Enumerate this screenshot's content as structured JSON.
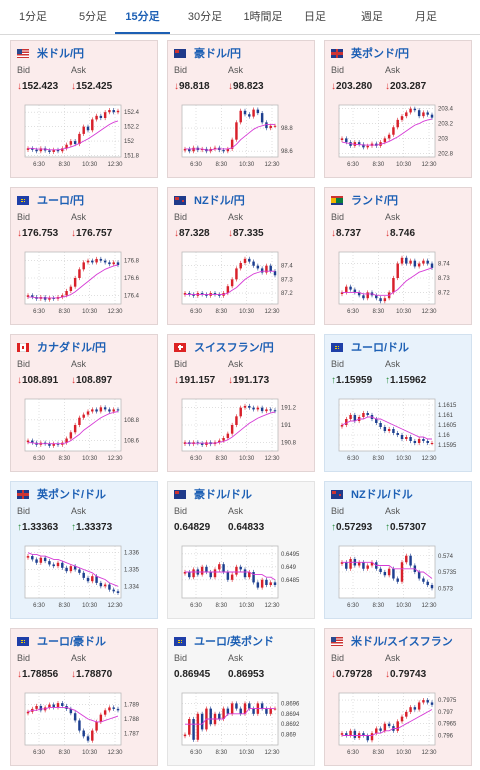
{
  "tabs": [
    {
      "label": "1分足",
      "active": false
    },
    {
      "label": "5分足",
      "active": false
    },
    {
      "label": "15分足",
      "active": true
    },
    {
      "label": "30分足",
      "active": false
    },
    {
      "label": "1時間足",
      "active": false
    },
    {
      "label": "日足",
      "active": false
    },
    {
      "label": "週足",
      "active": false
    },
    {
      "label": "月足",
      "active": false
    }
  ],
  "labels": {
    "bid": "Bid",
    "ask": "Ask"
  },
  "cards": [
    {
      "pair": "米ドル/円",
      "trend": "down",
      "flag": "us",
      "bid": "152.423",
      "ask": "152.425",
      "bid_dir": "down",
      "ask_dir": "down",
      "x_ticks": [
        "6:30",
        "8:30",
        "10:30",
        "12:30"
      ],
      "y_ticks": [
        "152.4",
        "152.2",
        "152",
        "151.8"
      ],
      "ylim": [
        151.78,
        152.5
      ],
      "candles": [
        151.9,
        151.88,
        151.86,
        151.9,
        151.87,
        151.85,
        151.88,
        151.86,
        151.9,
        151.95,
        152.0,
        151.96,
        152.1,
        152.2,
        152.15,
        152.3,
        152.35,
        152.32,
        152.4,
        152.43,
        152.4,
        152.42
      ],
      "ma": [
        151.9,
        151.9,
        151.89,
        151.89,
        151.89,
        151.88,
        151.88,
        151.88,
        151.89,
        151.9,
        151.92,
        151.94,
        151.97,
        152.0,
        152.03,
        152.07,
        152.11,
        152.15,
        152.19,
        152.23,
        152.26,
        152.28
      ]
    },
    {
      "pair": "豪ドル/円",
      "trend": "down",
      "flag": "au",
      "bid": "98.818",
      "ask": "98.823",
      "bid_dir": "down",
      "ask_dir": "down",
      "x_ticks": [
        "6:30",
        "8:30",
        "10:30",
        "12:30"
      ],
      "y_ticks": [
        "98.8",
        "98.6"
      ],
      "ylim": [
        98.55,
        99.0
      ],
      "candles": [
        98.62,
        98.6,
        98.63,
        98.61,
        98.62,
        98.6,
        98.62,
        98.63,
        98.61,
        98.6,
        98.62,
        98.7,
        98.85,
        98.95,
        98.92,
        98.9,
        98.96,
        98.93,
        98.85,
        98.8,
        98.82,
        98.82
      ],
      "ma": [
        98.62,
        98.62,
        98.62,
        98.62,
        98.62,
        98.61,
        98.61,
        98.62,
        98.62,
        98.62,
        98.62,
        98.63,
        98.66,
        98.7,
        98.73,
        98.76,
        98.79,
        98.81,
        98.82,
        98.83,
        98.83,
        98.83
      ]
    },
    {
      "pair": "英ポンド/円",
      "trend": "down",
      "flag": "gb",
      "bid": "203.280",
      "ask": "203.287",
      "bid_dir": "down",
      "ask_dir": "down",
      "x_ticks": [
        "6:30",
        "8:30",
        "10:30",
        "12:30"
      ],
      "y_ticks": [
        "203.4",
        "203.2",
        "203",
        "202.8"
      ],
      "ylim": [
        202.75,
        203.45
      ],
      "candles": [
        203.0,
        202.95,
        202.9,
        202.95,
        202.92,
        202.88,
        202.9,
        202.93,
        202.9,
        202.95,
        203.0,
        203.05,
        203.15,
        203.25,
        203.3,
        203.35,
        203.4,
        203.38,
        203.3,
        203.35,
        203.32,
        203.28
      ],
      "ma": [
        202.95,
        202.94,
        202.93,
        202.92,
        202.92,
        202.91,
        202.91,
        202.91,
        202.91,
        202.92,
        202.94,
        202.96,
        202.99,
        203.02,
        203.06,
        203.1,
        203.14,
        203.18,
        203.2,
        203.23,
        203.25,
        203.26
      ]
    },
    {
      "pair": "ユーロ/円",
      "trend": "down",
      "flag": "eu",
      "bid": "176.753",
      "ask": "176.757",
      "bid_dir": "down",
      "ask_dir": "down",
      "x_ticks": [
        "6:30",
        "8:30",
        "10:30",
        "12:30"
      ],
      "y_ticks": [
        "176.8",
        "176.6",
        "176.4"
      ],
      "ylim": [
        176.3,
        176.9
      ],
      "candles": [
        176.4,
        176.38,
        176.36,
        176.38,
        176.35,
        176.37,
        176.36,
        176.38,
        176.4,
        176.45,
        176.5,
        176.6,
        176.7,
        176.78,
        176.8,
        176.78,
        176.82,
        176.8,
        176.78,
        176.76,
        176.78,
        176.75
      ],
      "ma": [
        176.38,
        176.38,
        176.37,
        176.37,
        176.37,
        176.37,
        176.37,
        176.37,
        176.38,
        176.39,
        176.41,
        176.44,
        176.48,
        176.52,
        176.56,
        176.6,
        176.64,
        176.67,
        176.7,
        176.72,
        176.74,
        176.75
      ]
    },
    {
      "pair": "NZドル/円",
      "trend": "down",
      "flag": "nz",
      "bid": "87.328",
      "ask": "87.335",
      "bid_dir": "down",
      "ask_dir": "down",
      "x_ticks": [
        "6:30",
        "8:30",
        "10:30",
        "12:30"
      ],
      "y_ticks": [
        "87.4",
        "87.3",
        "87.2"
      ],
      "ylim": [
        87.12,
        87.5
      ],
      "candles": [
        87.2,
        87.19,
        87.18,
        87.2,
        87.19,
        87.18,
        87.2,
        87.19,
        87.18,
        87.2,
        87.25,
        87.3,
        87.38,
        87.42,
        87.45,
        87.43,
        87.4,
        87.38,
        87.35,
        87.4,
        87.36,
        87.33
      ],
      "ma": [
        87.19,
        87.19,
        87.19,
        87.19,
        87.19,
        87.19,
        87.19,
        87.19,
        87.19,
        87.19,
        87.2,
        87.22,
        87.24,
        87.27,
        87.3,
        87.32,
        87.34,
        87.35,
        87.36,
        87.36,
        87.36,
        87.36
      ]
    },
    {
      "pair": "ランド/円",
      "trend": "down",
      "flag": "za",
      "bid": "8.737",
      "ask": "8.746",
      "bid_dir": "down",
      "ask_dir": "down",
      "x_ticks": [
        "6:30",
        "8:30",
        "10:30",
        "12:30"
      ],
      "y_ticks": [
        "8.74",
        "8.73",
        "8.72"
      ],
      "ylim": [
        8.712,
        8.748
      ],
      "candles": [
        8.72,
        8.724,
        8.722,
        8.72,
        8.718,
        8.716,
        8.72,
        8.718,
        8.716,
        8.714,
        8.716,
        8.72,
        8.73,
        8.74,
        8.744,
        8.74,
        8.742,
        8.738,
        8.74,
        8.742,
        8.74,
        8.737
      ],
      "ma": [
        8.72,
        8.72,
        8.72,
        8.72,
        8.72,
        8.719,
        8.719,
        8.719,
        8.718,
        8.718,
        8.718,
        8.718,
        8.72,
        8.722,
        8.725,
        8.728,
        8.73,
        8.732,
        8.734,
        8.735,
        8.736,
        8.737
      ]
    },
    {
      "pair": "カナダドル/円",
      "trend": "down",
      "flag": "ca",
      "bid": "108.891",
      "ask": "108.897",
      "bid_dir": "down",
      "ask_dir": "down",
      "x_ticks": [
        "6:30",
        "8:30",
        "10:30",
        "12:30"
      ],
      "y_ticks": [
        "108.8",
        "108.6"
      ],
      "ylim": [
        108.5,
        109.0
      ],
      "candles": [
        108.6,
        108.58,
        108.56,
        108.58,
        108.57,
        108.55,
        108.57,
        108.56,
        108.58,
        108.62,
        108.68,
        108.75,
        108.82,
        108.85,
        108.88,
        108.9,
        108.88,
        108.92,
        108.9,
        108.88,
        108.9,
        108.89
      ],
      "ma": [
        108.58,
        108.58,
        108.57,
        108.57,
        108.57,
        108.57,
        108.57,
        108.57,
        108.57,
        108.58,
        108.6,
        108.63,
        108.66,
        108.7,
        108.73,
        108.76,
        108.79,
        108.82,
        108.84,
        108.86,
        108.87,
        108.88
      ]
    },
    {
      "pair": "スイスフラン/円",
      "trend": "down",
      "flag": "ch",
      "bid": "191.157",
      "ask": "191.173",
      "bid_dir": "down",
      "ask_dir": "down",
      "x_ticks": [
        "6:30",
        "8:30",
        "10:30",
        "12:30"
      ],
      "y_ticks": [
        "191.2",
        "191",
        "190.8"
      ],
      "ylim": [
        190.7,
        191.3
      ],
      "candles": [
        190.8,
        190.78,
        190.8,
        190.79,
        190.77,
        190.8,
        190.78,
        190.8,
        190.82,
        190.85,
        190.9,
        191.0,
        191.1,
        191.2,
        191.22,
        191.2,
        191.18,
        191.2,
        191.16,
        191.18,
        191.17,
        191.16
      ],
      "ma": [
        190.79,
        190.79,
        190.79,
        190.79,
        190.79,
        190.79,
        190.79,
        190.79,
        190.8,
        190.81,
        190.83,
        190.86,
        190.9,
        190.94,
        190.98,
        191.02,
        191.05,
        191.08,
        191.1,
        191.12,
        191.14,
        191.15
      ]
    },
    {
      "pair": "ユーロ/ドル",
      "trend": "up",
      "flag": "eu",
      "bid": "1.15959",
      "ask": "1.15962",
      "bid_dir": "up",
      "ask_dir": "up",
      "x_ticks": [
        "6:30",
        "8:30",
        "10:30",
        "12:30"
      ],
      "y_ticks": [
        "1.1615",
        "1.161",
        "1.1605",
        "1.16",
        "1.1595"
      ],
      "ylim": [
        1.1592,
        1.1618
      ],
      "candles": [
        1.1605,
        1.1608,
        1.161,
        1.1607,
        1.1609,
        1.1611,
        1.161,
        1.1608,
        1.1606,
        1.1604,
        1.1602,
        1.1603,
        1.1601,
        1.16,
        1.1598,
        1.1599,
        1.1597,
        1.1596,
        1.1598,
        1.1597,
        1.1596,
        1.1596
      ],
      "ma": [
        1.1605,
        1.1606,
        1.1607,
        1.1607,
        1.1608,
        1.1608,
        1.1609,
        1.1609,
        1.1608,
        1.1608,
        1.1607,
        1.1606,
        1.1605,
        1.1604,
        1.1603,
        1.1602,
        1.1601,
        1.16,
        1.1599,
        1.1599,
        1.1598,
        1.1598
      ]
    },
    {
      "pair": "英ポンド/ドル",
      "trend": "up",
      "flag": "gb",
      "bid": "1.33363",
      "ask": "1.33373",
      "bid_dir": "up",
      "ask_dir": "up",
      "x_ticks": [
        "6:30",
        "8:30",
        "10:30",
        "12:30"
      ],
      "y_ticks": [
        "1.336",
        "1.335",
        "1.334"
      ],
      "ylim": [
        1.3333,
        1.3364
      ],
      "candles": [
        1.3358,
        1.3356,
        1.3354,
        1.3357,
        1.3355,
        1.3353,
        1.3352,
        1.3354,
        1.3351,
        1.3349,
        1.3352,
        1.335,
        1.3348,
        1.3345,
        1.3343,
        1.3346,
        1.3342,
        1.334,
        1.3341,
        1.3338,
        1.3337,
        1.3336
      ],
      "ma": [
        1.336,
        1.3359,
        1.3359,
        1.3358,
        1.3358,
        1.3357,
        1.3356,
        1.3356,
        1.3355,
        1.3354,
        1.3353,
        1.3352,
        1.3351,
        1.335,
        1.3349,
        1.3348,
        1.3346,
        1.3345,
        1.3344,
        1.3342,
        1.3341,
        1.334
      ]
    },
    {
      "pair": "豪ドル/ドル",
      "trend": "flat",
      "flag": "au",
      "bid": "0.64829",
      "ask": "0.64833",
      "bid_dir": "none",
      "ask_dir": "none",
      "x_ticks": [
        "6:30",
        "8:30",
        "10:30",
        "12:30"
      ],
      "y_ticks": [
        "0.6495",
        "0.649",
        "0.6485"
      ],
      "ylim": [
        0.6478,
        0.6498
      ],
      "candles": [
        0.6488,
        0.6486,
        0.6489,
        0.6487,
        0.649,
        0.6488,
        0.6486,
        0.6489,
        0.6491,
        0.6488,
        0.6485,
        0.6487,
        0.649,
        0.6489,
        0.6486,
        0.6488,
        0.6484,
        0.6482,
        0.6485,
        0.6483,
        0.6484,
        0.6483
      ],
      "ma": [
        0.6488,
        0.6488,
        0.6488,
        0.6488,
        0.6488,
        0.6488,
        0.6488,
        0.6488,
        0.6488,
        0.6488,
        0.6488,
        0.6488,
        0.6488,
        0.6488,
        0.6488,
        0.6488,
        0.6487,
        0.6487,
        0.6487,
        0.6486,
        0.6486,
        0.6485
      ]
    },
    {
      "pair": "NZドル/ドル",
      "trend": "up",
      "flag": "nz",
      "bid": "0.57293",
      "ask": "0.57307",
      "bid_dir": "up",
      "ask_dir": "up",
      "x_ticks": [
        "6:30",
        "8:30",
        "10:30",
        "12:30"
      ],
      "y_ticks": [
        "0.574",
        "0.5735",
        "0.573"
      ],
      "ylim": [
        0.5727,
        0.5743
      ],
      "candles": [
        0.5738,
        0.5736,
        0.5739,
        0.5737,
        0.5738,
        0.5736,
        0.5737,
        0.5738,
        0.5736,
        0.5735,
        0.5734,
        0.5736,
        0.5733,
        0.5732,
        0.5738,
        0.574,
        0.5737,
        0.5735,
        0.5733,
        0.5732,
        0.5731,
        0.573
      ],
      "ma": [
        0.5738,
        0.5738,
        0.5738,
        0.5738,
        0.5738,
        0.5738,
        0.5738,
        0.5738,
        0.5737,
        0.5737,
        0.5737,
        0.5737,
        0.5736,
        0.5736,
        0.5736,
        0.5736,
        0.5736,
        0.5736,
        0.5735,
        0.5735,
        0.5734,
        0.5733
      ]
    },
    {
      "pair": "ユーロ/豪ドル",
      "trend": "down",
      "flag": "eu",
      "bid": "1.78856",
      "ask": "1.78870",
      "bid_dir": "down",
      "ask_dir": "down",
      "x_ticks": [
        "6:30",
        "8:30",
        "10:30",
        "12:30"
      ],
      "y_ticks": [
        "1.789",
        "1.788",
        "1.787"
      ],
      "ylim": [
        1.7862,
        1.7898
      ],
      "candles": [
        1.7885,
        1.7887,
        1.7889,
        1.7886,
        1.7888,
        1.789,
        1.7888,
        1.7891,
        1.7889,
        1.7887,
        1.7884,
        1.7879,
        1.7872,
        1.7868,
        1.7865,
        1.7872,
        1.7878,
        1.7883,
        1.7886,
        1.7888,
        1.7887,
        1.7886
      ],
      "ma": [
        1.7885,
        1.7886,
        1.7886,
        1.7887,
        1.7887,
        1.7888,
        1.7888,
        1.7888,
        1.7888,
        1.7888,
        1.7887,
        1.7886,
        1.7884,
        1.7882,
        1.788,
        1.7879,
        1.7878,
        1.7878,
        1.7879,
        1.788,
        1.7881,
        1.7882
      ]
    },
    {
      "pair": "ユーロ/英ポンド",
      "trend": "flat",
      "flag": "eu",
      "bid": "0.86945",
      "ask": "0.86953",
      "bid_dir": "none",
      "ask_dir": "none",
      "x_ticks": [
        "6:30",
        "8:30",
        "10:30",
        "12:30"
      ],
      "y_ticks": [
        "0.8696",
        "0.8694",
        "0.8692",
        "0.869"
      ],
      "ylim": [
        0.8688,
        0.8698
      ],
      "candles": [
        0.869,
        0.8693,
        0.8689,
        0.8694,
        0.8691,
        0.8695,
        0.8692,
        0.8694,
        0.8693,
        0.8695,
        0.8694,
        0.8696,
        0.8695,
        0.8694,
        0.8696,
        0.8695,
        0.8694,
        0.8696,
        0.8695,
        0.8694,
        0.8695,
        0.8695
      ],
      "ma": [
        0.8692,
        0.8692,
        0.8692,
        0.8692,
        0.8692,
        0.8693,
        0.8693,
        0.8693,
        0.8693,
        0.8693,
        0.8694,
        0.8694,
        0.8694,
        0.8694,
        0.8694,
        0.8695,
        0.8695,
        0.8695,
        0.8695,
        0.8695,
        0.8695,
        0.8695
      ]
    },
    {
      "pair": "米ドル/スイスフラン",
      "trend": "down",
      "flag": "us",
      "bid": "0.79728",
      "ask": "0.79743",
      "bid_dir": "down",
      "ask_dir": "down",
      "x_ticks": [
        "6:30",
        "8:30",
        "10:30",
        "12:30"
      ],
      "y_ticks": [
        "0.7975",
        "0.797",
        "0.7965",
        "0.796"
      ],
      "ylim": [
        0.7956,
        0.7978
      ],
      "candles": [
        0.7961,
        0.796,
        0.7962,
        0.7959,
        0.7961,
        0.796,
        0.7958,
        0.7961,
        0.7963,
        0.7962,
        0.7965,
        0.7964,
        0.7962,
        0.7966,
        0.7968,
        0.797,
        0.7972,
        0.7971,
        0.7974,
        0.7975,
        0.7974,
        0.7973
      ],
      "ma": [
        0.796,
        0.796,
        0.796,
        0.796,
        0.796,
        0.796,
        0.796,
        0.796,
        0.7961,
        0.7961,
        0.7962,
        0.7962,
        0.7963,
        0.7963,
        0.7964,
        0.7965,
        0.7966,
        0.7967,
        0.7968,
        0.7969,
        0.797,
        0.7971
      ]
    }
  ]
}
